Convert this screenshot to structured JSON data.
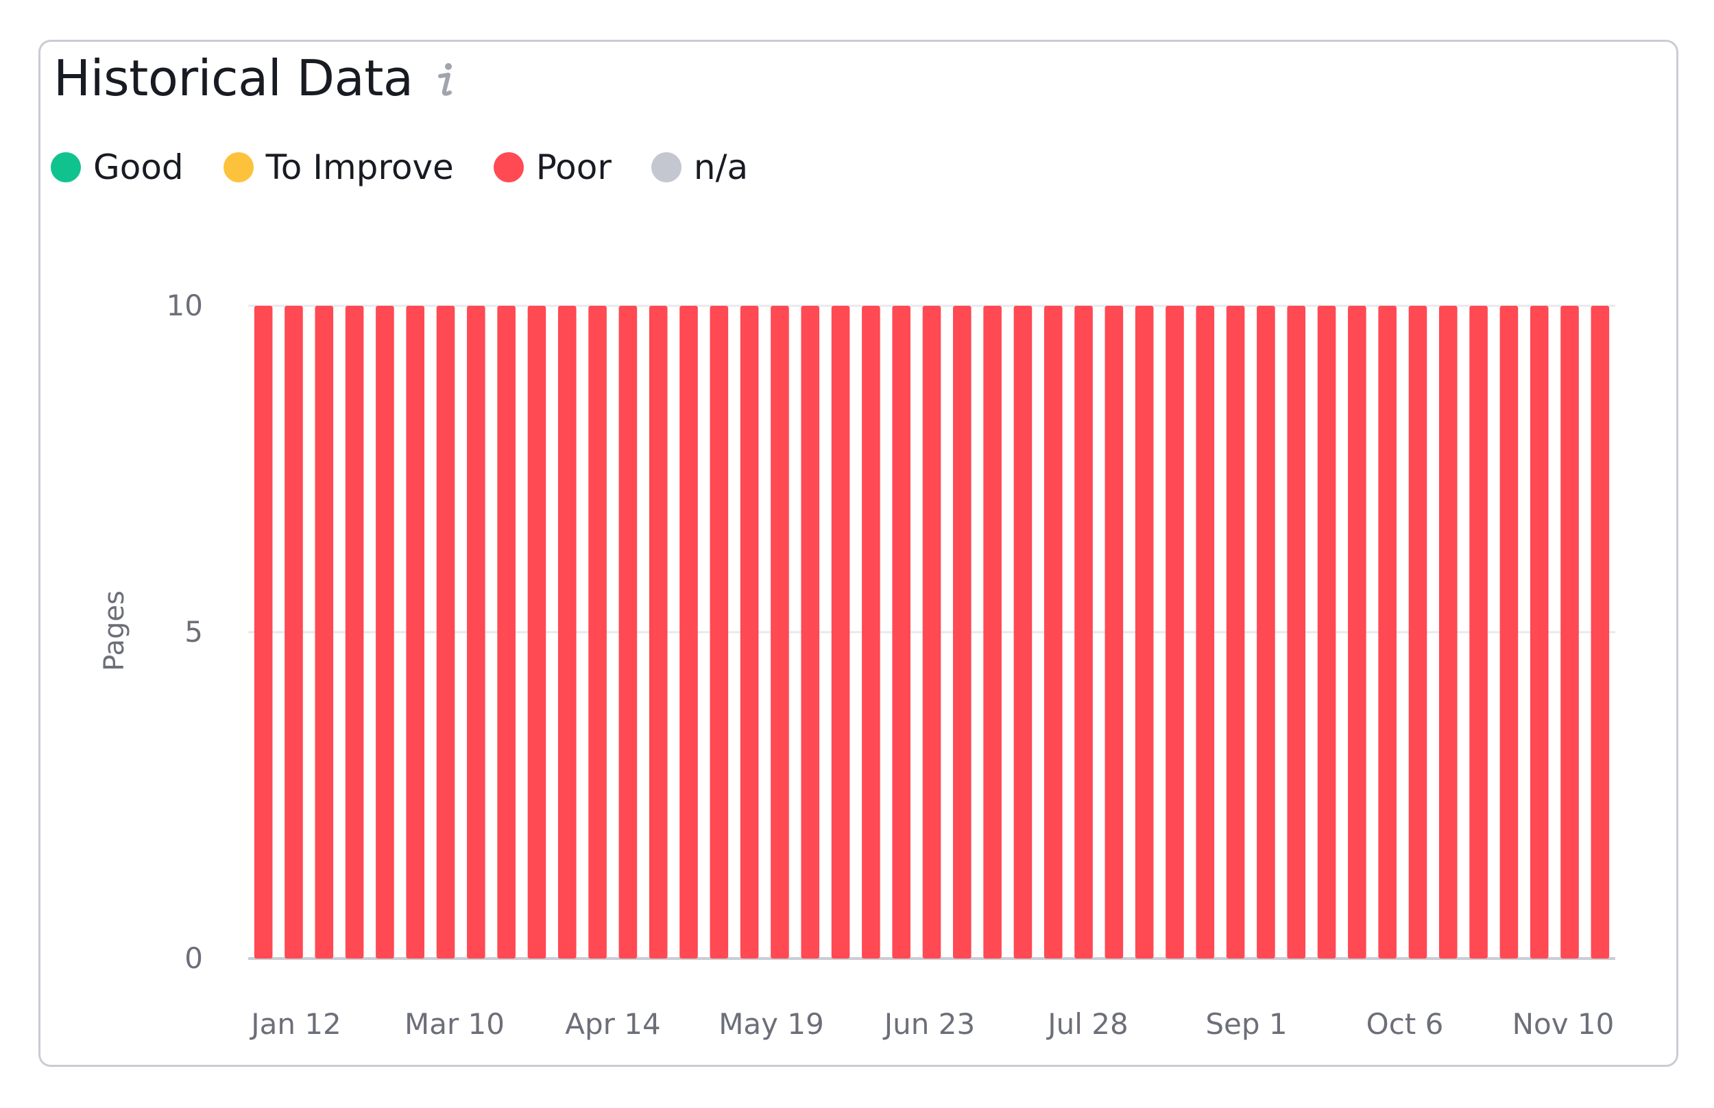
{
  "card": {
    "title": "Historical Data",
    "info_icon": "info-icon"
  },
  "legend": [
    {
      "label": "Good",
      "color": "#10c38e"
    },
    {
      "label": "To Improve",
      "color": "#fdc23c"
    },
    {
      "label": "Poor",
      "color": "#ff4953"
    },
    {
      "label": "n/a",
      "color": "#c4c7cf"
    }
  ],
  "chart_data": {
    "type": "bar",
    "stacked": true,
    "ylabel": "Pages",
    "ylim": [
      0,
      10
    ],
    "yticks": [
      0,
      5,
      10
    ],
    "grid": true,
    "bar_count": 45,
    "x_tick_labels": [
      "Jan 12",
      "Mar 10",
      "Apr 14",
      "May 19",
      "Jun 23",
      "Jul 28",
      "Sep 1",
      "Oct 6",
      "Nov 10"
    ],
    "series": [
      {
        "name": "Good",
        "color": "#10c38e",
        "values": [
          0,
          0,
          0,
          0,
          0,
          0,
          0,
          0,
          0,
          0,
          0,
          0,
          0,
          0,
          0,
          0,
          0,
          0,
          0,
          0,
          0,
          0,
          0,
          0,
          0,
          0,
          0,
          0,
          0,
          0,
          0,
          0,
          0,
          0,
          0,
          0,
          0,
          0,
          0,
          0,
          0,
          0,
          0,
          0,
          0
        ]
      },
      {
        "name": "To Improve",
        "color": "#fdc23c",
        "values": [
          0,
          0,
          0,
          0,
          0,
          0,
          0,
          0,
          0,
          0,
          0,
          0,
          0,
          0,
          0,
          0,
          0,
          0,
          0,
          0,
          0,
          0,
          0,
          0,
          0,
          0,
          0,
          0,
          0,
          0,
          0,
          0,
          0,
          0,
          0,
          0,
          0,
          0,
          0,
          0,
          0,
          0,
          0,
          0,
          0
        ]
      },
      {
        "name": "Poor",
        "color": "#ff4953",
        "values": [
          10,
          10,
          10,
          10,
          10,
          10,
          10,
          10,
          10,
          10,
          10,
          10,
          10,
          10,
          10,
          10,
          10,
          10,
          10,
          10,
          10,
          10,
          10,
          10,
          10,
          10,
          10,
          10,
          10,
          10,
          10,
          10,
          10,
          10,
          10,
          10,
          10,
          10,
          10,
          10,
          10,
          10,
          10,
          10,
          10
        ]
      },
      {
        "name": "n/a",
        "color": "#c4c7cf",
        "values": [
          0,
          0,
          0,
          0,
          0,
          0,
          0,
          0,
          0,
          0,
          0,
          0,
          0,
          0,
          0,
          0,
          0,
          0,
          0,
          0,
          0,
          0,
          0,
          0,
          0,
          0,
          0,
          0,
          0,
          0,
          0,
          0,
          0,
          0,
          0,
          0,
          0,
          0,
          0,
          0,
          0,
          0,
          0,
          0,
          0
        ]
      }
    ]
  }
}
